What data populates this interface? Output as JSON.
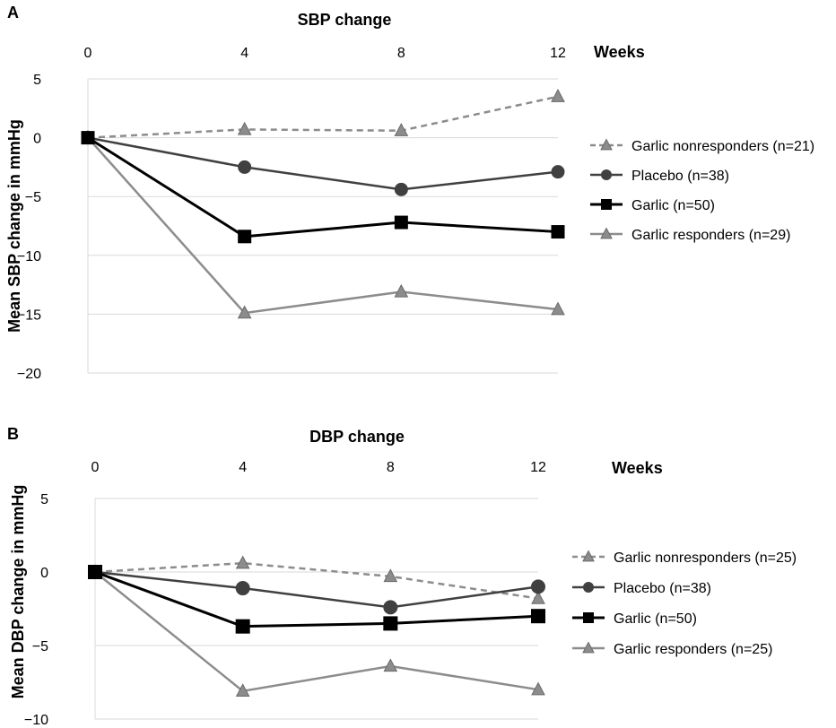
{
  "chart_data": [
    {
      "type": "line",
      "panel": "A",
      "title": "SBP change",
      "xlabel": "Weeks",
      "ylabel": "Mean SBP change in mmHg",
      "x": [
        0,
        4,
        8,
        12
      ],
      "xlim": [
        0,
        12
      ],
      "ylim": [
        -20,
        5
      ],
      "yticks": [
        5,
        0,
        -5,
        -10,
        -15,
        -20
      ],
      "ytick_labels": [
        "5",
        "0",
        "−5",
        "−10",
        "−15",
        "−20"
      ],
      "grid": true,
      "x_axis_position": "top",
      "legend_position": "right",
      "series": [
        {
          "name": "Garlic nonresponders (n=21)",
          "values": [
            0,
            0.7,
            0.6,
            3.5
          ],
          "color": "#8c8c8c",
          "dash": true,
          "marker": "triangle"
        },
        {
          "name": "Placebo (n=38)",
          "values": [
            0,
            -2.5,
            -4.4,
            -2.9
          ],
          "color": "#404040",
          "dash": false,
          "marker": "circle"
        },
        {
          "name": "Garlic (n=50)",
          "values": [
            0,
            -8.4,
            -7.2,
            -8.0
          ],
          "color": "#000000",
          "dash": false,
          "marker": "square"
        },
        {
          "name": "Garlic responders (n=29)",
          "values": [
            0,
            -14.9,
            -13.1,
            -14.6
          ],
          "color": "#8c8c8c",
          "dash": false,
          "marker": "triangle"
        }
      ]
    },
    {
      "type": "line",
      "panel": "B",
      "title": "DBP change",
      "xlabel": "Weeks",
      "ylabel": "Mean DBP change in mmHg",
      "x": [
        0,
        4,
        8,
        12
      ],
      "xlim": [
        0,
        12
      ],
      "ylim": [
        -10,
        5
      ],
      "yticks": [
        5,
        0,
        -5,
        -10
      ],
      "ytick_labels": [
        "5",
        "0",
        "−5",
        "−10"
      ],
      "grid": true,
      "x_axis_position": "top",
      "legend_position": "right",
      "series": [
        {
          "name": "Garlic nonresponders (n=25)",
          "values": [
            0,
            0.6,
            -0.3,
            -1.8
          ],
          "color": "#8c8c8c",
          "dash": true,
          "marker": "triangle"
        },
        {
          "name": "Placebo (n=38)",
          "values": [
            0,
            -1.1,
            -2.4,
            -1.0
          ],
          "color": "#404040",
          "dash": false,
          "marker": "circle"
        },
        {
          "name": "Garlic (n=50)",
          "values": [
            0,
            -3.7,
            -3.5,
            -3.0
          ],
          "color": "#000000",
          "dash": false,
          "marker": "square"
        },
        {
          "name": "Garlic responders (n=25)",
          "values": [
            0,
            -8.1,
            -6.4,
            -8.0
          ],
          "color": "#8c8c8c",
          "dash": false,
          "marker": "triangle"
        }
      ]
    }
  ]
}
